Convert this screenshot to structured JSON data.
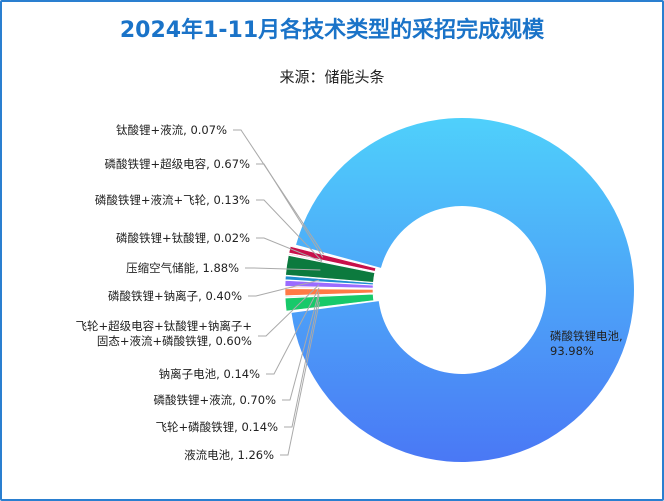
{
  "chart_data": {
    "type": "pie",
    "title": "2024年1-11月各技术类型的采招完成规模",
    "subtitle": "来源：储能头条",
    "slices": [
      {
        "name": "液流电池",
        "value": 1.26,
        "color": "#18C96A"
      },
      {
        "name": "飞轮+磷酸铁锂",
        "value": 0.14,
        "color": "#8FD3A8"
      },
      {
        "name": "磷酸铁锂+液流",
        "value": 0.7,
        "color": "#FF7A45"
      },
      {
        "name": "钠离子电池",
        "value": 0.14,
        "color": "#FF5A5A"
      },
      {
        "name": "飞轮+超级电容+钛酸锂+钠离子+固态+液流+磷酸铁锂",
        "value": 0.6,
        "color": "#9B6BFF"
      },
      {
        "name": "磷酸铁锂+钠离子",
        "value": 0.4,
        "color": "#1E8FD0"
      },
      {
        "name": "压缩空气储能",
        "value": 1.88,
        "color": "#0C7A3E"
      },
      {
        "name": "磷酸铁锂+钛酸锂",
        "value": 0.02,
        "color": "#3A3A8C"
      },
      {
        "name": "磷酸铁锂+液流+飞轮",
        "value": 0.13,
        "color": "#E04080"
      },
      {
        "name": "磷酸铁锂+超级电容",
        "value": 0.67,
        "color": "#C8104A"
      },
      {
        "name": "钛酸锂+液流",
        "value": 0.07,
        "color": "#8A2050"
      },
      {
        "name": "磷酸铁锂电池",
        "value": 93.98,
        "color": "#4B8AF8"
      }
    ],
    "labels": [
      {
        "slice": 10,
        "lines": [
          "钛酸锂+液流, 0.07%"
        ]
      },
      {
        "slice": 9,
        "lines": [
          "磷酸铁锂+超级电容, 0.67%"
        ]
      },
      {
        "slice": 8,
        "lines": [
          "磷酸铁锂+液流+飞轮, 0.13%"
        ]
      },
      {
        "slice": 7,
        "lines": [
          "磷酸铁锂+钛酸锂, 0.02%"
        ]
      },
      {
        "slice": 6,
        "lines": [
          "压缩空气储能, 1.88%"
        ]
      },
      {
        "slice": 5,
        "lines": [
          "磷酸铁锂+钠离子, 0.40%"
        ]
      },
      {
        "slice": 4,
        "lines": [
          "飞轮+超级电容+钛酸锂+钠离子+",
          "固态+液流+磷酸铁锂, 0.60%"
        ]
      },
      {
        "slice": 3,
        "lines": [
          "钠离子电池, 0.14%"
        ]
      },
      {
        "slice": 2,
        "lines": [
          "磷酸铁锂+液流, 0.70%"
        ]
      },
      {
        "slice": 1,
        "lines": [
          "飞轮+磷酸铁锂, 0.14%"
        ]
      },
      {
        "slice": 0,
        "lines": [
          "液流电池, 1.26%"
        ]
      },
      {
        "slice": 11,
        "lines": [
          "磷酸铁锂电池,",
          "93.98%"
        ]
      }
    ],
    "legend": "none"
  }
}
